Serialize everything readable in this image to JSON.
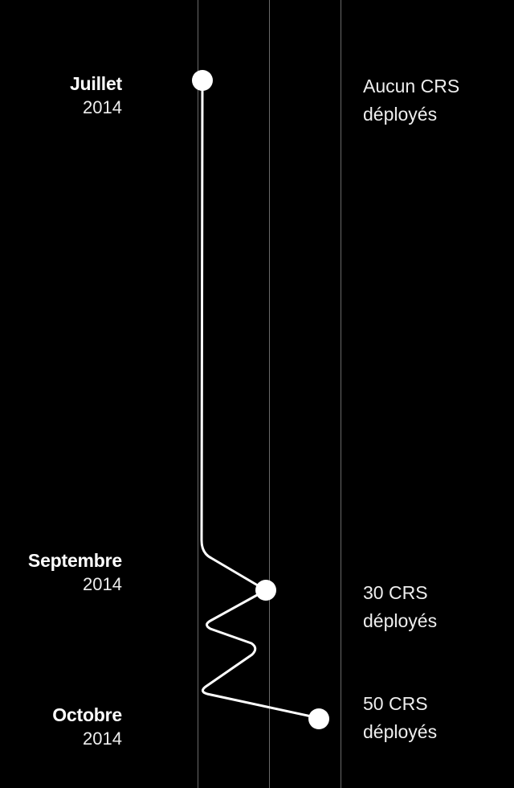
{
  "colors": {
    "background": "#000000",
    "line": "#ffffff",
    "grid": "#6a6a6a"
  },
  "events": [
    {
      "month": "Juillet",
      "year": "2014",
      "status_line1": "Aucun CRS",
      "status_line2": "déployés"
    },
    {
      "month": "Septembre",
      "year": "2014",
      "status_line1": "30 CRS",
      "status_line2": "déployés"
    },
    {
      "month": "Octobre",
      "year": "2014",
      "status_line1": "50 CRS",
      "status_line2": "déployés"
    }
  ]
}
